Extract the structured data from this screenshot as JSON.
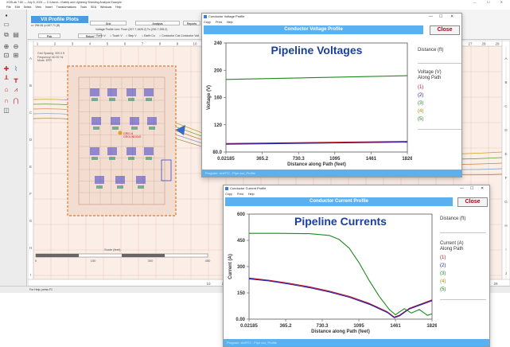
{
  "app": {
    "title": "XGSLab 7.80 — July 8, 2024 — C:\\Users\\...\\Safety and Lightning Shielding Analysis Example",
    "window_controls": "— ☐ ✕",
    "menu": [
      "File",
      "Edit",
      "Select",
      "View",
      "Insert",
      "Transformations",
      "Tools",
      "SEA",
      "Windows",
      "Help"
    ],
    "panel_title": "V/I Profile Plots",
    "panel_sub": "x= 254.81 y=447.71 (ft)",
    "buttons": {
      "grid": "Grid",
      "pick": "Pick",
      "return": "Return",
      "analysis": "Analysis",
      "reports": "Reports"
    },
    "profile_line": "Voltage Profile Line:  From (207.7,1625.2) To (292.7,295.2)",
    "options": [
      "Earth V",
      "Touch V",
      "Step V",
      "Earth Cu",
      "Conductor Cur",
      "Conductor Volt"
    ],
    "grid_info": [
      "Grid Spacing: 300.0 ft",
      "Frequency: 60.00 Hz",
      "Mode: EPR"
    ],
    "ruler_top": [
      "1",
      "2",
      "3",
      "4",
      "5",
      "6",
      "7",
      "8",
      "9",
      "10",
      "11"
    ],
    "ruler_top_right": [
      "27",
      "28",
      "29"
    ],
    "ruler_left": [
      "A",
      "B",
      "C",
      "D",
      "E",
      "F",
      "G",
      "H",
      "I"
    ],
    "ruler_right": [
      "A",
      "B",
      "C",
      "D",
      "E",
      "F",
      "G",
      "H",
      "I",
      "J"
    ],
    "ruler_bottom": [
      "10",
      "11",
      "12",
      "13",
      "14",
      "15",
      "16",
      "17",
      "18",
      "19",
      "20",
      "21",
      "22",
      "23",
      "24",
      "25",
      "26",
      "27",
      "28",
      "29"
    ],
    "ground_label": [
      "GRID A",
      "GROUNDING"
    ],
    "scale_label": "Scale (feet)",
    "scale_ticks": [
      "0",
      "150",
      "300",
      "450"
    ],
    "status": "For Help, press F1"
  },
  "voltage_window": {
    "title": "Conductor Voltage Profile",
    "controls": [
      "—",
      "☐",
      "✕"
    ],
    "menu": [
      "Copy",
      "Print",
      "Help"
    ],
    "header": "Conductor Voltage Profile",
    "close_label": "Close",
    "footer": "Program: xbrRT2 - Pipe xxx_Profile"
  },
  "current_window": {
    "title": "Conductor Current Profile",
    "controls": [
      "—",
      "☐",
      "✕"
    ],
    "menu": [
      "Copy",
      "Print",
      "Help"
    ],
    "header": "Conductor Current Profile",
    "close_label": "Close",
    "footer": "Program: xbrRT2 - Pipe xxx_Profile"
  },
  "chart_data": [
    {
      "type": "line",
      "title": "Pipeline Voltages",
      "xlabel": "Distance along Path (feet)",
      "ylabel": "Voltage (V)",
      "xlim": [
        0.02185,
        1826
      ],
      "ylim": [
        80.0,
        240
      ],
      "x_ticks": [
        "0.02185",
        "365.2",
        "730.3",
        "1095",
        "1461",
        "1826"
      ],
      "y_ticks": [
        "80.0",
        "120",
        "160",
        "200",
        "240"
      ],
      "legend": {
        "distance_label": "Distance (ft)",
        "title": [
          "Voltage (V)",
          "Along Path"
        ],
        "items": [
          "(1)",
          "(2)",
          "(3)",
          "(4)",
          "(5)"
        ]
      },
      "series": [
        {
          "name": "(1)",
          "color": "#c0182a",
          "x": [
            0.02185,
            1826
          ],
          "y": [
            92.5,
            95.5
          ]
        },
        {
          "name": "(2)",
          "color": "#2020b0",
          "x": [
            0.02185,
            1826
          ],
          "y": [
            91.5,
            94.5
          ]
        },
        {
          "name": "(3)",
          "color": "#1e8a1e",
          "x": [
            0.02185,
            1826
          ],
          "y": [
            186.5,
            192.0
          ]
        }
      ]
    },
    {
      "type": "line",
      "title": "Pipeline Currents",
      "xlabel": "Distance along Path (feet)",
      "ylabel": "Current (A)",
      "xlim": [
        0.02185,
        1826
      ],
      "ylim": [
        0.0,
        600
      ],
      "x_ticks": [
        "0.02185",
        "365.2",
        "730.3",
        "1095",
        "1461",
        "1826"
      ],
      "y_ticks": [
        "0.00",
        "150",
        "300",
        "450",
        "600"
      ],
      "legend": {
        "distance_label": "Distance (ft)",
        "title": [
          "Current (A)",
          "Along Path"
        ],
        "items": [
          "(1)",
          "(2)",
          "(3)",
          "(4)",
          "(5)"
        ]
      },
      "series": [
        {
          "name": "(1)",
          "color": "#c0182a",
          "x": [
            0.02185,
            200,
            400,
            600,
            800,
            1000,
            1200,
            1380,
            1450,
            1500,
            1600,
            1826
          ],
          "y": [
            235,
            222,
            205,
            185,
            160,
            130,
            90,
            42,
            12,
            22,
            62,
            110
          ]
        },
        {
          "name": "(2)",
          "color": "#2020b0",
          "x": [
            0.02185,
            200,
            400,
            600,
            800,
            1000,
            1200,
            1380,
            1450,
            1500,
            1600,
            1826
          ],
          "y": [
            230,
            218,
            200,
            180,
            155,
            125,
            85,
            38,
            8,
            18,
            58,
            105
          ]
        },
        {
          "name": "(3)",
          "color": "#1e8a1e",
          "x": [
            0.02185,
            300,
            600,
            800,
            900,
            1000,
            1100,
            1200,
            1300,
            1400,
            1461,
            1550,
            1620,
            1700,
            1780,
            1826
          ],
          "y": [
            490,
            490,
            488,
            478,
            455,
            405,
            320,
            220,
            130,
            55,
            25,
            60,
            35,
            55,
            22,
            30
          ]
        }
      ]
    }
  ]
}
